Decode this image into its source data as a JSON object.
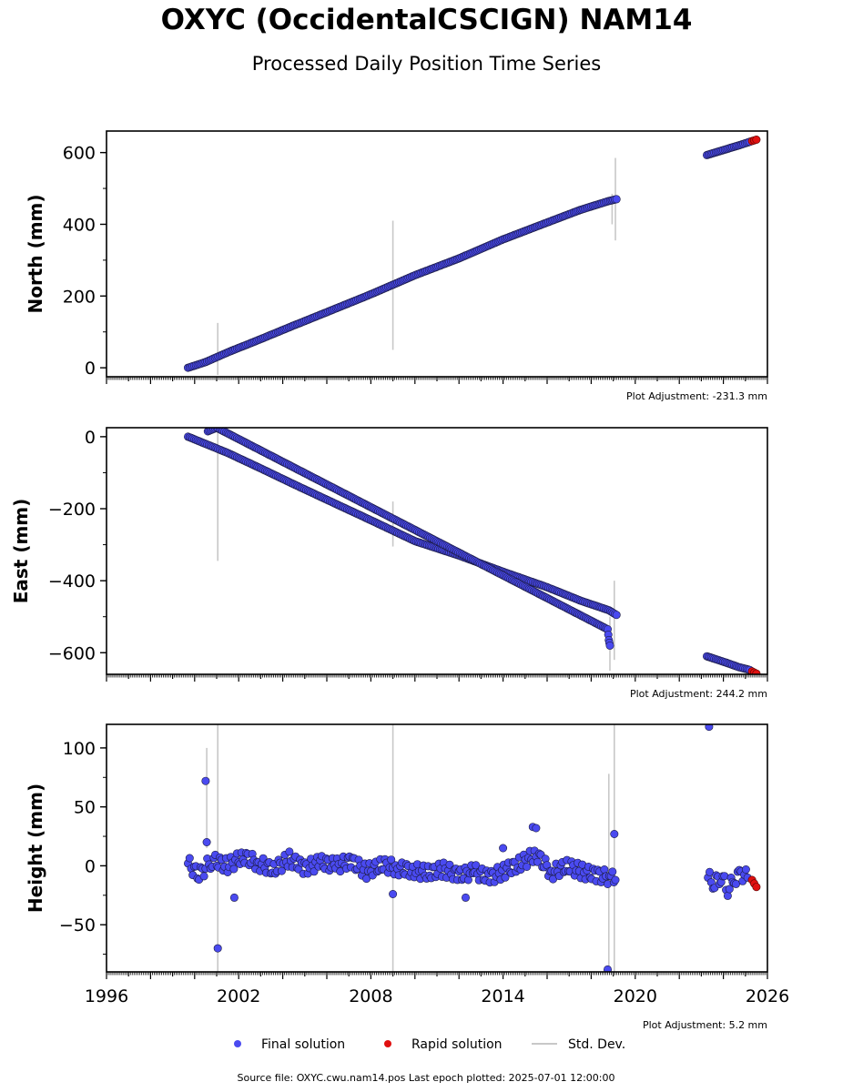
{
  "header": {
    "title": "OXYC (OccidentalCSCIGN) NAM14",
    "subtitle": "Processed Daily Position Time Series"
  },
  "colors": {
    "final": "#4a4af0",
    "final_edge": "#1a1a40",
    "rapid": "#e01010",
    "stddev": "#c8c8c8"
  },
  "chart_data": [
    {
      "type": "scatter",
      "ylabel": "North (mm)",
      "plot_adjustment": "Plot Adjustment: -231.3 mm",
      "xlim": [
        1996,
        2026
      ],
      "ylim": [
        -25,
        660
      ],
      "yticks": [
        0,
        200,
        400,
        600
      ],
      "ytick_labels": [
        "0",
        "200",
        "400",
        "600"
      ],
      "series": [
        {
          "name": "Final solution",
          "x": [
            1999.7,
            2000.5,
            2001.5,
            2003,
            2004.5,
            2006,
            2008,
            2010,
            2012,
            2014,
            2016,
            2017.5,
            2018.8,
            2019.15
          ],
          "y": [
            0,
            16,
            43,
            80,
            118,
            155,
            205,
            258,
            305,
            358,
            405,
            440,
            465,
            470
          ]
        },
        {
          "name": "Final solution",
          "x": [
            2023.25,
            2024,
            2024.7,
            2025.2
          ],
          "y": [
            593,
            607,
            620,
            630
          ]
        },
        {
          "name": "Rapid solution",
          "x": [
            2025.3,
            2025.4,
            2025.5
          ],
          "y": [
            632,
            634,
            636
          ]
        }
      ],
      "stddev_bars": [
        {
          "x": 2001.05,
          "low": -20,
          "high": 125
        },
        {
          "x": 2009.0,
          "low": 50,
          "high": 410
        },
        {
          "x": 2018.95,
          "low": 400,
          "high": 485
        },
        {
          "x": 2019.1,
          "low": 355,
          "high": 585
        }
      ]
    },
    {
      "type": "scatter",
      "ylabel": "East (mm)",
      "plot_adjustment": "Plot Adjustment: 244.2 mm",
      "xlim": [
        1996,
        2026
      ],
      "ylim": [
        -660,
        25
      ],
      "yticks": [
        0,
        -200,
        -400,
        -600
      ],
      "ytick_labels": [
        "0",
        "−200",
        "−400",
        "−600"
      ],
      "series": [
        {
          "name": "Final solution",
          "x": [
            1999.7,
            2000.5,
            2001.5,
            2003,
            2004.5,
            2006,
            2008,
            2010,
            2012,
            2014,
            2016,
            2017.5,
            2018.8,
            2019.15
          ],
          "y": [
            0,
            -20,
            -45,
            -88,
            -132,
            -175,
            -232,
            -290,
            -330,
            -375,
            -418,
            -455,
            -482,
            -495
          ]
        },
        {
          "name": "Final solution",
          "x": [
            2000.6,
            2001.0,
            2018.75,
            2018.8,
            2018.85
          ],
          "y": [
            15,
            25,
            -535,
            -565,
            -580
          ]
        },
        {
          "name": "Final solution",
          "x": [
            2023.25,
            2024,
            2024.7,
            2025.2
          ],
          "y": [
            -610,
            -625,
            -640,
            -648
          ]
        },
        {
          "name": "Rapid solution",
          "x": [
            2025.3,
            2025.4,
            2025.5
          ],
          "y": [
            -652,
            -655,
            -658
          ]
        }
      ],
      "stddev_bars": [
        {
          "x": 2001.05,
          "low": -345,
          "high": 20
        },
        {
          "x": 2009.0,
          "low": -305,
          "high": -180
        },
        {
          "x": 2018.85,
          "low": -650,
          "high": -500
        },
        {
          "x": 2019.05,
          "low": -620,
          "high": -400
        }
      ]
    },
    {
      "type": "scatter",
      "ylabel": "Height (mm)",
      "plot_adjustment": "Plot Adjustment: 5.2 mm",
      "xlim": [
        1996,
        2026
      ],
      "ylim": [
        -90,
        120
      ],
      "yticks": [
        100,
        50,
        0,
        -50
      ],
      "ytick_labels": [
        "100",
        "50",
        "0",
        "−50"
      ],
      "xticks": [
        1996,
        2002,
        2008,
        2014,
        2020,
        2026
      ],
      "xtick_labels": [
        "1996",
        "2002",
        "2008",
        "2014",
        "2020",
        "2026"
      ],
      "series": [
        {
          "name": "Final solution",
          "x": [
            1999.7,
            2000.2,
            2000.8,
            2001.5,
            2002.2,
            2002.9,
            2003.6,
            2004.3,
            2005.0,
            2005.7,
            2006.4,
            2007.1,
            2007.8,
            2008.5,
            2009.2,
            2009.9,
            2010.6,
            2011.3,
            2012.0,
            2012.7,
            2013.4,
            2014.1,
            2014.8,
            2015.5,
            2016.2,
            2016.9,
            2017.6,
            2018.3,
            2018.9,
            2019.1
          ],
          "y": [
            2,
            -8,
            5,
            0,
            8,
            2,
            -3,
            6,
            -2,
            3,
            0,
            4,
            -5,
            1,
            -2,
            -4,
            -6,
            -3,
            -8,
            -5,
            -10,
            -4,
            2,
            10,
            -6,
            0,
            -5,
            -8,
            -10,
            -12
          ]
        },
        {
          "name": "Final solution",
          "x": [
            2000.5,
            2000.55,
            2001.8,
            2001.05,
            2009.0,
            2012.3,
            2014.0,
            2015.35,
            2015.5,
            2018.75,
            2019.05,
            2023.35
          ],
          "y": [
            72,
            20,
            -27,
            -70,
            -24,
            -27,
            15,
            33,
            32,
            -88,
            27,
            118
          ]
        },
        {
          "name": "Final solution",
          "x": [
            2023.3,
            2023.6,
            2023.9,
            2024.2,
            2024.5,
            2024.8,
            2025.1
          ],
          "y": [
            -10,
            -15,
            -8,
            -20,
            -12,
            -6,
            -10
          ]
        },
        {
          "name": "Rapid solution",
          "x": [
            2025.3,
            2025.4,
            2025.5
          ],
          "y": [
            -12,
            -15,
            -18
          ]
        }
      ],
      "stddev_bars": [
        {
          "x": 2000.55,
          "low": 15,
          "high": 100
        },
        {
          "x": 2001.05,
          "low": -90,
          "high": 120
        },
        {
          "x": 2009.0,
          "low": -90,
          "high": 120
        },
        {
          "x": 2018.8,
          "low": -90,
          "high": 78
        },
        {
          "x": 2019.05,
          "low": -90,
          "high": 120
        }
      ]
    }
  ],
  "legend": {
    "final": "Final solution",
    "rapid": "Rapid solution",
    "stddev": "Std. Dev."
  },
  "footer": {
    "source": "Source file: OXYC.cwu.nam14.pos  Last epoch plotted: 2025-07-01 12:00:00"
  }
}
